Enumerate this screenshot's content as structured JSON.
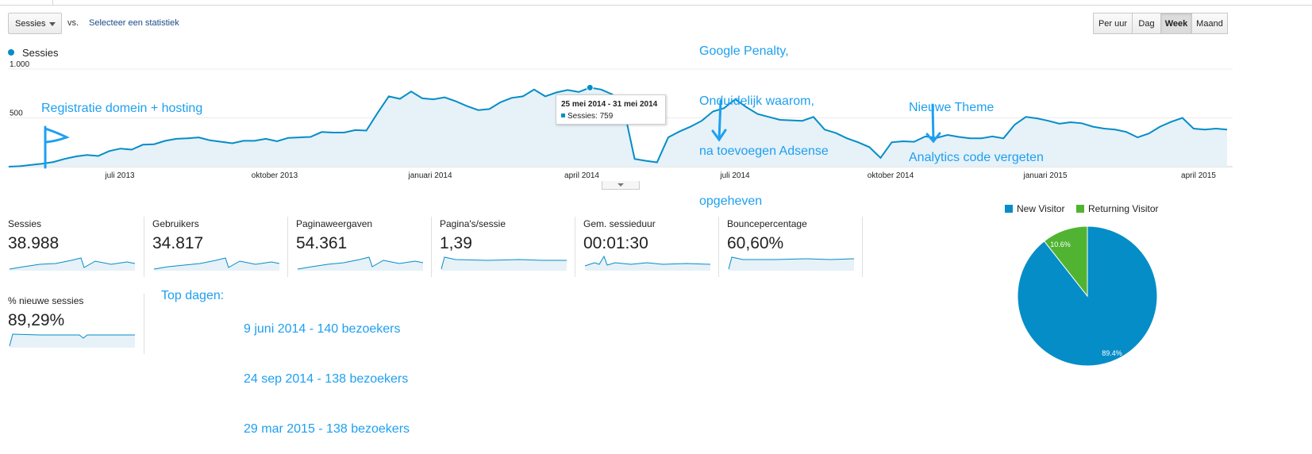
{
  "toolbar": {
    "metric_select": "Sessies",
    "vs": "vs.",
    "compare_link": "Selecteer een statistiek",
    "granularity": [
      "Per uur",
      "Dag",
      "Week",
      "Maand"
    ],
    "granularity_active": "Week"
  },
  "chart_legend": "Sessies",
  "tooltip": {
    "date": "25 mei 2014 - 31 mei 2014",
    "label": "Sessies: 759"
  },
  "annotations": {
    "registration": "Registratie domein + hosting",
    "penalty": [
      "Google Penalty,",
      "Onduidelijk waarom,",
      "na toevoegen Adsense",
      "opgeheven"
    ],
    "theme": [
      "Nieuwe Theme",
      "Analytics code vergeten"
    ]
  },
  "metrics": [
    {
      "name": "Sessies",
      "value": "38.988"
    },
    {
      "name": "Gebruikers",
      "value": "34.817"
    },
    {
      "name": "Paginaweergaven",
      "value": "54.361"
    },
    {
      "name": "Pagina's/sessie",
      "value": "1,39"
    },
    {
      "name": "Gem. sessieduur",
      "value": "00:01:30"
    },
    {
      "name": "Bouncepercentage",
      "value": "60,60%"
    },
    {
      "name": "% nieuwe sessies",
      "value": "89,29%"
    }
  ],
  "top_days": {
    "heading": "Top dagen:",
    "lines": [
      "9 juni 2014 - 140 bezoekers",
      "24 sep 2014 - 138 bezoekers",
      "29 mar 2015 - 138 bezoekers"
    ]
  },
  "colors": {
    "series": "#058dc7",
    "returning": "#50b432",
    "annotation": "#1ea0f0"
  },
  "chart_data": [
    {
      "type": "area",
      "series": [
        {
          "name": "Sessies",
          "values": [
            0,
            5,
            18,
            30,
            48,
            80,
            105,
            120,
            110,
            160,
            185,
            175,
            225,
            230,
            265,
            285,
            290,
            300,
            270,
            255,
            240,
            265,
            265,
            285,
            260,
            295,
            300,
            305,
            355,
            350,
            350,
            375,
            370,
            550,
            720,
            695,
            770,
            700,
            690,
            710,
            670,
            620,
            580,
            590,
            660,
            705,
            720,
            790,
            720,
            760,
            785,
            765,
            810,
            790,
            740,
            610,
            80,
            60,
            45,
            300,
            360,
            410,
            470,
            565,
            600,
            690,
            610,
            540,
            510,
            480,
            475,
            470,
            510,
            380,
            345,
            290,
            250,
            200,
            90,
            250,
            260,
            255,
            310,
            295,
            325,
            305,
            290,
            290,
            310,
            290,
            430,
            510,
            495,
            470,
            440,
            455,
            445,
            410,
            390,
            380,
            355,
            300,
            340,
            410,
            460,
            500,
            390,
            380,
            390,
            380
          ]
        }
      ],
      "x_ticks": [
        "juli 2013",
        "oktober 2013",
        "januari 2014",
        "april 2014",
        "juli 2014",
        "oktober 2014",
        "januari 2015",
        "april 2015"
      ],
      "y_ticks": [
        "500",
        "1.000"
      ],
      "ylim": [
        0,
        1000
      ],
      "highlight": {
        "week": "25 mei 2014 - 31 mei 2014",
        "value": 759
      }
    },
    {
      "type": "pie",
      "labels": [
        "New Visitor",
        "Returning Visitor"
      ],
      "values": [
        89.4,
        10.6
      ],
      "data_labels": [
        "89.4%",
        "10.6%"
      ],
      "colors": [
        "#058dc7",
        "#50b432"
      ]
    }
  ]
}
